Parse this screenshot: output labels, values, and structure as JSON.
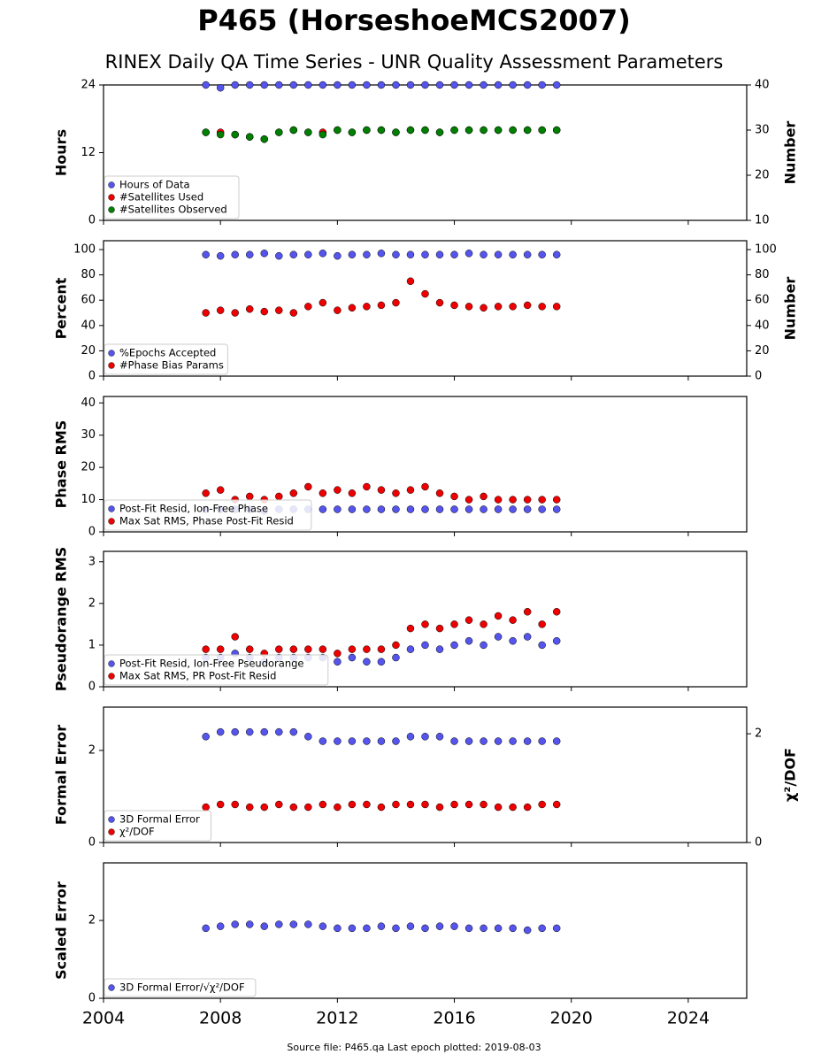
{
  "title": "P465 (HorseshoeMCS2007)",
  "subtitle": "RINEX Daily QA Time Series - UNR Quality Assessment Parameters",
  "footer": "Source file: P465.qa Last epoch plotted: 2019-08-03",
  "chart_data": [
    {
      "type": "scatter",
      "ylabel": "Hours",
      "y2label": "Number",
      "legend": "lower left",
      "xlim": [
        2004,
        2026
      ],
      "xticks": [
        2004,
        2008,
        2012,
        2016,
        2020,
        2024
      ],
      "ylim": [
        0,
        24
      ],
      "yticks": [
        0,
        12,
        24
      ],
      "y2lim": [
        10,
        40
      ],
      "y2ticks": [
        10,
        20,
        30,
        40
      ],
      "x": [
        2007.5,
        2008,
        2008.5,
        2009,
        2009.5,
        2010,
        2010.5,
        2011,
        2011.5,
        2012,
        2012.5,
        2013,
        2013.5,
        2014,
        2014.5,
        2015,
        2015.5,
        2016,
        2016.5,
        2017,
        2017.5,
        2018,
        2018.5,
        2019,
        2019.5
      ],
      "series": [
        {
          "name": "Hours of Data",
          "color": "#5555ee",
          "values": [
            24,
            23.5,
            24,
            24,
            24,
            24,
            24,
            24,
            24,
            24,
            24,
            24,
            24,
            24,
            24,
            24,
            24,
            24,
            24,
            24,
            24,
            24,
            24,
            24,
            24
          ]
        },
        {
          "name": "#Satellites Used",
          "color": "#ee0000",
          "axis": "y2",
          "values": [
            29.5,
            29.5,
            29,
            28.5,
            28,
            29.5,
            30,
            29.5,
            29.5,
            30,
            29.5,
            30,
            30,
            29.5,
            30,
            30,
            29.5,
            30,
            30,
            30,
            30,
            30,
            30,
            30,
            30
          ]
        },
        {
          "name": "#Satellites Observed",
          "color": "#008000",
          "axis": "y2",
          "values": [
            29.5,
            29,
            29,
            28.5,
            28,
            29.5,
            30,
            29.5,
            29,
            30,
            29.5,
            30,
            30,
            29.5,
            30,
            30,
            29.5,
            30,
            30,
            30,
            30,
            30,
            30,
            30,
            30
          ]
        }
      ]
    },
    {
      "type": "scatter",
      "ylabel": "Percent",
      "y2label": "Number",
      "legend": "lower left",
      "xlim": [
        2004,
        2026
      ],
      "xticks": [
        2004,
        2008,
        2012,
        2016,
        2020,
        2024
      ],
      "ylim": [
        0,
        107
      ],
      "yticks": [
        0,
        20,
        40,
        60,
        80,
        100
      ],
      "y2lim": [
        0,
        107
      ],
      "y2ticks": [
        0,
        20,
        40,
        60,
        80,
        100
      ],
      "x": [
        2007.5,
        2008,
        2008.5,
        2009,
        2009.5,
        2010,
        2010.5,
        2011,
        2011.5,
        2012,
        2012.5,
        2013,
        2013.5,
        2014,
        2014.5,
        2015,
        2015.5,
        2016,
        2016.5,
        2017,
        2017.5,
        2018,
        2018.5,
        2019,
        2019.5
      ],
      "series": [
        {
          "name": "%Epochs Accepted",
          "color": "#5555ee",
          "values": [
            96,
            95,
            96,
            96,
            97,
            95,
            96,
            96,
            97,
            95,
            96,
            96,
            97,
            96,
            96,
            96,
            96,
            96,
            97,
            96,
            96,
            96,
            96,
            96,
            96
          ]
        },
        {
          "name": "#Phase Bias Params",
          "color": "#ee0000",
          "axis": "y2",
          "values": [
            50,
            52,
            50,
            53,
            51,
            52,
            50,
            55,
            58,
            52,
            54,
            55,
            56,
            58,
            75,
            65,
            58,
            56,
            55,
            54,
            55,
            55,
            56,
            55,
            55
          ]
        }
      ]
    },
    {
      "type": "scatter",
      "ylabel": "Phase RMS",
      "legend": "lower left",
      "xlim": [
        2004,
        2026
      ],
      "xticks": [
        2004,
        2008,
        2012,
        2016,
        2020,
        2024
      ],
      "ylim": [
        0,
        42
      ],
      "yticks": [
        0,
        10,
        20,
        30,
        40
      ],
      "x": [
        2007.5,
        2008,
        2008.5,
        2009,
        2009.5,
        2010,
        2010.5,
        2011,
        2011.5,
        2012,
        2012.5,
        2013,
        2013.5,
        2014,
        2014.5,
        2015,
        2015.5,
        2016,
        2016.5,
        2017,
        2017.5,
        2018,
        2018.5,
        2019,
        2019.5
      ],
      "series": [
        {
          "name": "Post-Fit Resid, Ion-Free Phase",
          "color": "#5555ee",
          "values": [
            7,
            7,
            7,
            7,
            6.5,
            7,
            7,
            7,
            7,
            7,
            7,
            7,
            7,
            7,
            7,
            7,
            7,
            7,
            7,
            7,
            7,
            7,
            7,
            7,
            7
          ]
        },
        {
          "name": "Max Sat RMS, Phase Post-Fit Resid",
          "color": "#ee0000",
          "values": [
            12,
            13,
            10,
            11,
            10,
            11,
            12,
            14,
            12,
            13,
            12,
            14,
            13,
            12,
            13,
            14,
            12,
            11,
            10,
            11,
            10,
            10,
            10,
            10,
            10
          ]
        }
      ]
    },
    {
      "type": "scatter",
      "ylabel": "Pseudorange RMS",
      "legend": "lower left",
      "xlim": [
        2004,
        2026
      ],
      "xticks": [
        2004,
        2008,
        2012,
        2016,
        2020,
        2024
      ],
      "ylim": [
        0,
        3.25
      ],
      "yticks": [
        0,
        1,
        2,
        3
      ],
      "x": [
        2007.5,
        2008,
        2008.5,
        2009,
        2009.5,
        2010,
        2010.5,
        2011,
        2011.5,
        2012,
        2012.5,
        2013,
        2013.5,
        2014,
        2014.5,
        2015,
        2015.5,
        2016,
        2016.5,
        2017,
        2017.5,
        2018,
        2018.5,
        2019,
        2019.5
      ],
      "series": [
        {
          "name": "Post-Fit Resid, Ion-Free Pseudorange",
          "color": "#5555ee",
          "values": [
            0.7,
            0.7,
            0.8,
            0.7,
            0.6,
            0.7,
            0.7,
            0.7,
            0.7,
            0.6,
            0.7,
            0.6,
            0.6,
            0.7,
            0.9,
            1.0,
            0.9,
            1.0,
            1.1,
            1.0,
            1.2,
            1.1,
            1.2,
            1.0,
            1.1
          ]
        },
        {
          "name": "Max Sat RMS, PR Post-Fit Resid",
          "color": "#ee0000",
          "values": [
            0.9,
            0.9,
            1.2,
            0.9,
            0.8,
            0.9,
            0.9,
            0.9,
            0.9,
            0.8,
            0.9,
            0.9,
            0.9,
            1.0,
            1.4,
            1.5,
            1.4,
            1.5,
            1.6,
            1.5,
            1.7,
            1.6,
            1.8,
            1.5,
            1.8
          ]
        }
      ]
    },
    {
      "type": "scatter",
      "ylabel": "Formal Error",
      "y2label": "χ²/DOF",
      "legend": "lower left",
      "xlim": [
        2004,
        2026
      ],
      "xticks": [
        2004,
        2008,
        2012,
        2016,
        2020,
        2024
      ],
      "ylim": [
        0,
        2.94
      ],
      "yticks": [
        0,
        2
      ],
      "y2lim": [
        0,
        2.49
      ],
      "y2ticks": [
        0,
        2
      ],
      "x": [
        2007.5,
        2008,
        2008.5,
        2009,
        2009.5,
        2010,
        2010.5,
        2011,
        2011.5,
        2012,
        2012.5,
        2013,
        2013.5,
        2014,
        2014.5,
        2015,
        2015.5,
        2016,
        2016.5,
        2017,
        2017.5,
        2018,
        2018.5,
        2019,
        2019.5
      ],
      "series": [
        {
          "name": "3D Formal Error",
          "color": "#5555ee",
          "values": [
            2.3,
            2.4,
            2.4,
            2.4,
            2.4,
            2.4,
            2.4,
            2.3,
            2.2,
            2.2,
            2.2,
            2.2,
            2.2,
            2.2,
            2.3,
            2.3,
            2.3,
            2.2,
            2.2,
            2.2,
            2.2,
            2.2,
            2.2,
            2.2,
            2.2
          ]
        },
        {
          "name": "χ²/DOF",
          "color": "#ee0000",
          "axis": "y2",
          "values": [
            0.65,
            0.7,
            0.7,
            0.65,
            0.65,
            0.7,
            0.65,
            0.65,
            0.7,
            0.65,
            0.7,
            0.7,
            0.65,
            0.7,
            0.7,
            0.7,
            0.65,
            0.7,
            0.7,
            0.7,
            0.65,
            0.65,
            0.65,
            0.7,
            0.7
          ]
        }
      ]
    },
    {
      "type": "scatter",
      "ylabel": "Scaled Error",
      "legend": "lower left",
      "xlim": [
        2004,
        2026
      ],
      "xticks": [
        2004,
        2008,
        2012,
        2016,
        2020,
        2024
      ],
      "ylim": [
        0,
        3.48
      ],
      "yticks": [
        0,
        2
      ],
      "x": [
        2007.5,
        2008,
        2008.5,
        2009,
        2009.5,
        2010,
        2010.5,
        2011,
        2011.5,
        2012,
        2012.5,
        2013,
        2013.5,
        2014,
        2014.5,
        2015,
        2015.5,
        2016,
        2016.5,
        2017,
        2017.5,
        2018,
        2018.5,
        2019,
        2019.5
      ],
      "series": [
        {
          "name": "3D Formal Error/√χ²/DOF",
          "color": "#5555ee",
          "values": [
            1.8,
            1.85,
            1.9,
            1.9,
            1.85,
            1.9,
            1.9,
            1.9,
            1.85,
            1.8,
            1.8,
            1.8,
            1.85,
            1.8,
            1.85,
            1.8,
            1.85,
            1.85,
            1.8,
            1.8,
            1.8,
            1.8,
            1.75,
            1.8,
            1.8
          ]
        }
      ]
    }
  ]
}
